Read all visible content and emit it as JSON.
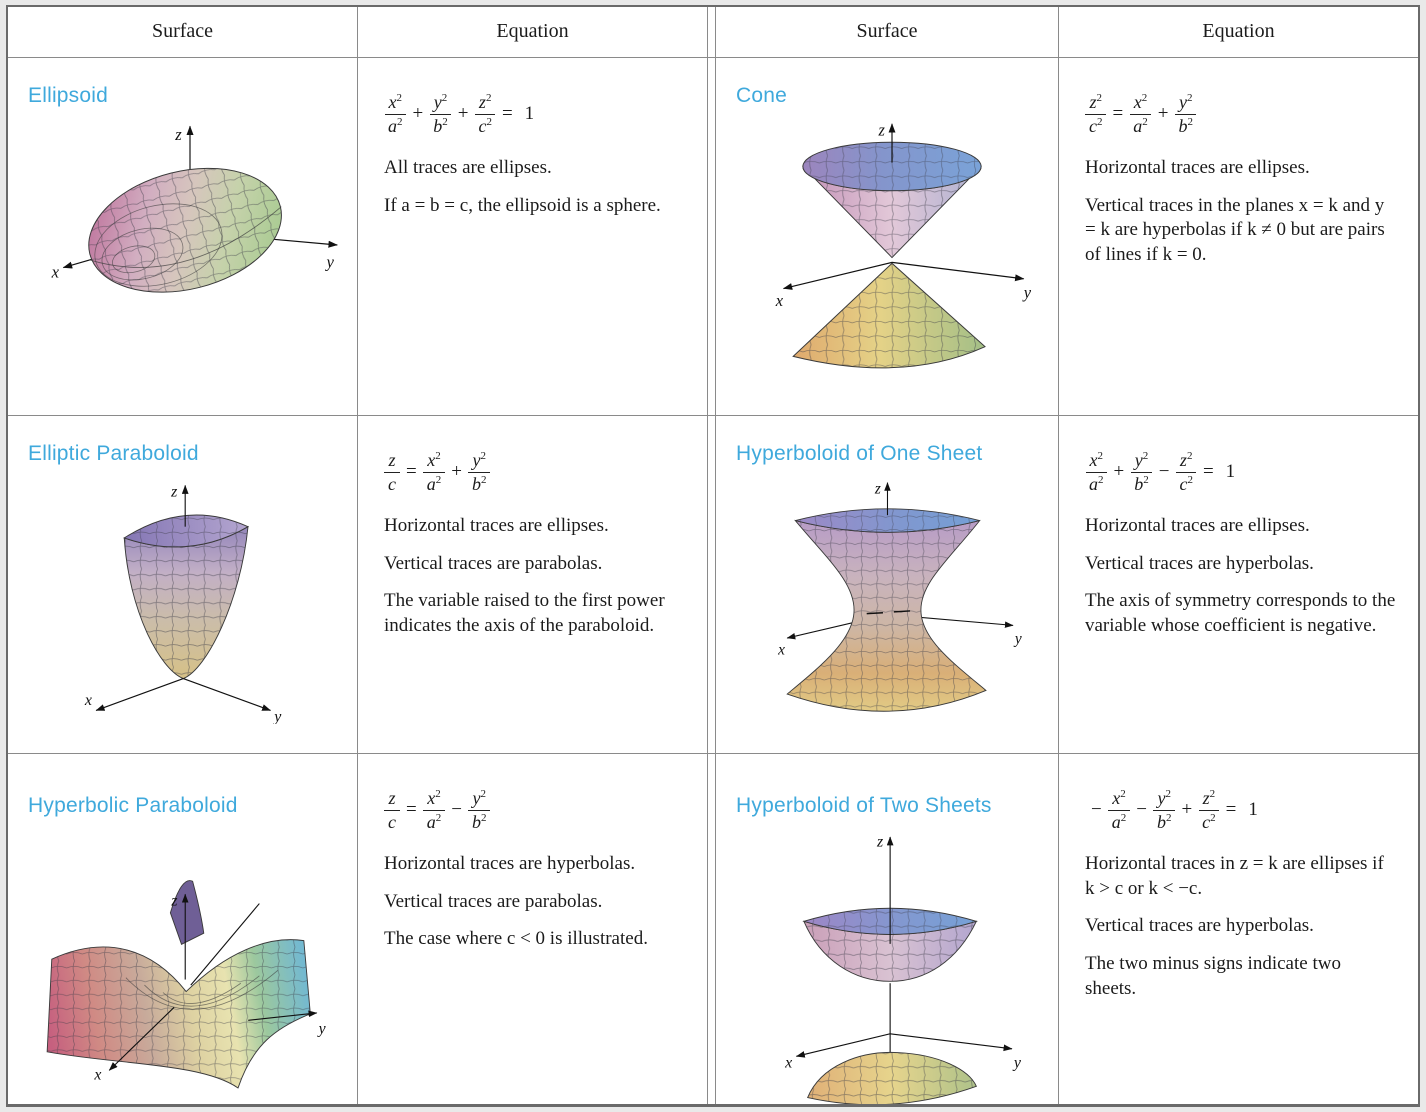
{
  "axes": {
    "x": "x",
    "y": "y",
    "z": "z"
  },
  "colors": {
    "surface_label": "#3fa9dc",
    "grid_border": "#8a8a8a",
    "outer_border": "#6a6a6a",
    "body_text": "#1b1b1b"
  },
  "table": {
    "headers": [
      "Surface",
      "Equation",
      "Surface",
      "Equation"
    ],
    "rows": [
      {
        "cells": [
          {
            "surface": "Ellipsoid",
            "equation": "x^2/a^2 + y^2/b^2 + z^2/c^2 = 1",
            "notes": [
              "All traces are ellipses.",
              "If a = b = c, the ellipsoid is a sphere."
            ]
          },
          {
            "surface": "Cone",
            "equation": "z^2/c^2 = x^2/a^2 + y^2/b^2",
            "notes": [
              "Horizontal traces are ellipses.",
              "Vertical traces in the planes x = k and y = k are hyperbolas if k ≠ 0 but are pairs of lines if k = 0."
            ]
          }
        ]
      },
      {
        "cells": [
          {
            "surface": "Elliptic Paraboloid",
            "equation": "z/c = x^2/a^2 + y^2/b^2",
            "notes": [
              "Horizontal traces are ellipses.",
              "Vertical traces are parabolas.",
              "The variable raised to the first power indicates the axis of the paraboloid."
            ]
          },
          {
            "surface": "Hyperboloid of One Sheet",
            "equation": "x^2/a^2 + y^2/b^2 − z^2/c^2 = 1",
            "notes": [
              "Horizontal traces are ellipses.",
              "Vertical traces are hyperbolas.",
              "The axis of symmetry corresponds to the variable whose coefficient is negative."
            ]
          }
        ]
      },
      {
        "cells": [
          {
            "surface": "Hyperbolic Paraboloid",
            "equation": "z/c = x^2/a^2 − y^2/b^2",
            "notes": [
              "Horizontal traces are hyperbolas.",
              "Vertical traces are parabolas.",
              "The case where c < 0 is illustrated."
            ]
          },
          {
            "surface": "Hyperboloid of Two Sheets",
            "equation": "− x^2/a^2 − y^2/b^2 + z^2/c^2 = 1",
            "notes": [
              "Horizontal traces in z = k are ellipses if k > c or k < −c.",
              "Vertical traces are hyperbolas.",
              "The two minus signs indicate two sheets."
            ]
          }
        ]
      }
    ]
  }
}
